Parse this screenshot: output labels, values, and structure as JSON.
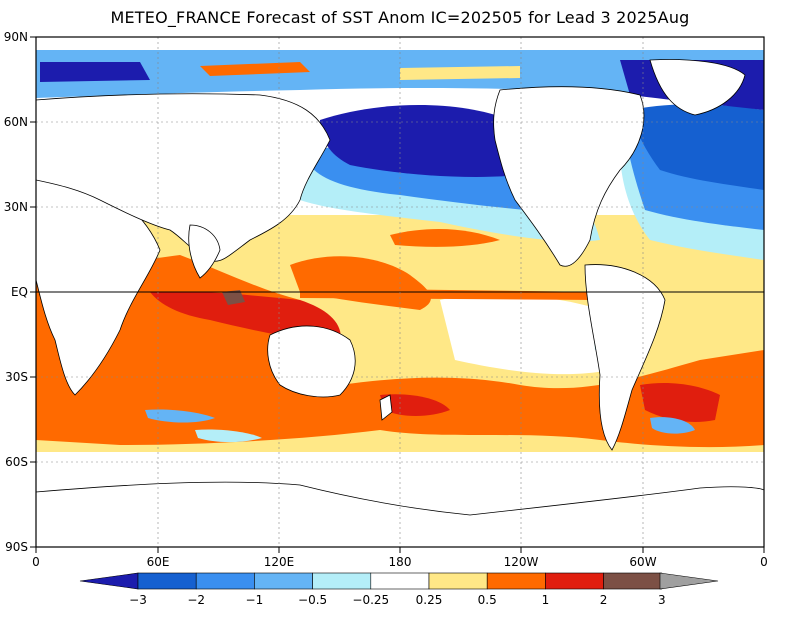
{
  "title": "METEO_FRANCE Forecast of SST Anom IC=202505 for Lead 3 2025Aug",
  "map": {
    "lat_labels": [
      "90N",
      "60N",
      "30N",
      "EQ",
      "30S",
      "60S",
      "90S"
    ],
    "lon_labels": [
      "0",
      "60E",
      "120E",
      "180",
      "120W",
      "60W",
      "0"
    ]
  },
  "colorbar": {
    "labels": [
      "-3",
      "-2",
      "-1",
      "-0.5",
      "-0.25",
      "0.25",
      "0.5",
      "1",
      "2",
      "3"
    ],
    "colors": [
      "#1c1cad",
      "#1560d0",
      "#3a8ff0",
      "#64b4f5",
      "#b4eef8",
      "#ffffff",
      "#ffe887",
      "#ff6a00",
      "#e01e0e",
      "#7c5045",
      "#a0a0a0"
    ]
  },
  "regions": [
    {
      "name": "arctic-negative-band",
      "level": -2
    },
    {
      "name": "north-pacific-negative",
      "level": -3
    },
    {
      "name": "north-atlantic-negative",
      "level": -2
    },
    {
      "name": "indian-ocean-positive",
      "level": 1
    },
    {
      "name": "maritime-continent-positive",
      "level": 2
    },
    {
      "name": "southern-ocean-positive",
      "level": 1
    },
    {
      "name": "equatorial-pacific-positive",
      "level": 0.5
    }
  ]
}
